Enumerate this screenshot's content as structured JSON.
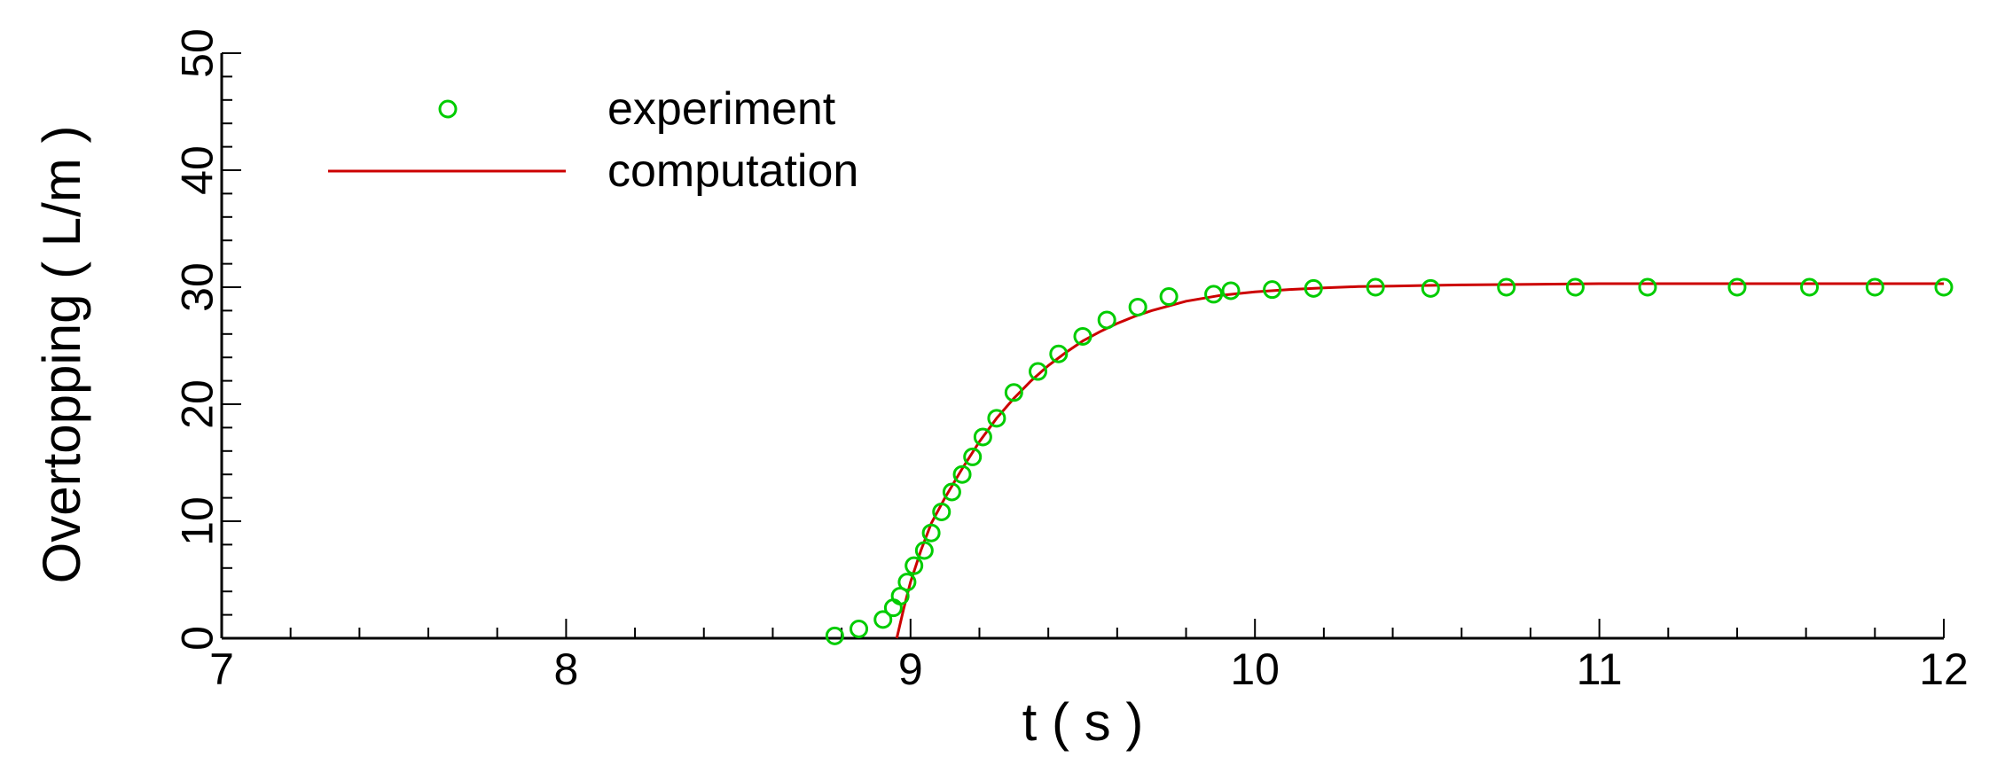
{
  "chart_data": {
    "type": "scatter",
    "title": "",
    "xlabel": "t ( s )",
    "ylabel": "Overtopping ( L/m )",
    "xlim": [
      7,
      12
    ],
    "ylim": [
      0,
      50
    ],
    "x_ticks": [
      "7",
      "8",
      "9",
      "10",
      "11",
      "12"
    ],
    "y_ticks": [
      "0",
      "10",
      "20",
      "30",
      "40",
      "50"
    ],
    "grid": false,
    "legend_position": "top-left",
    "series": [
      {
        "name": "experiment",
        "type": "scatter",
        "marker": "open-circle",
        "color": "#00cc00",
        "x": [
          8.78,
          8.85,
          8.92,
          8.95,
          8.97,
          8.99,
          9.01,
          9.04,
          9.06,
          9.09,
          9.12,
          9.15,
          9.18,
          9.21,
          9.25,
          9.3,
          9.37,
          9.43,
          9.5,
          9.57,
          9.66,
          9.75,
          9.88,
          9.93,
          10.05,
          10.17,
          10.35,
          10.51,
          10.73,
          10.93,
          11.14,
          11.4,
          11.61,
          11.8,
          12.0
        ],
        "y": [
          0.2,
          0.8,
          1.6,
          2.6,
          3.6,
          4.8,
          6.2,
          7.5,
          9.0,
          10.8,
          12.5,
          14.0,
          15.5,
          17.2,
          18.8,
          21.0,
          22.8,
          24.3,
          25.8,
          27.2,
          28.3,
          29.2,
          29.4,
          29.7,
          29.8,
          29.9,
          30.0,
          29.9,
          30.0,
          30.0,
          30.0,
          30.0,
          30.0,
          30.0,
          30.0
        ]
      },
      {
        "name": "computation",
        "type": "line",
        "color": "#cc0000",
        "x": [
          8.96,
          8.98,
          9.0,
          9.03,
          9.06,
          9.1,
          9.15,
          9.2,
          9.25,
          9.3,
          9.35,
          9.4,
          9.45,
          9.5,
          9.55,
          9.6,
          9.65,
          9.7,
          9.8,
          9.9,
          10.0,
          10.1,
          10.2,
          10.3,
          10.4,
          10.5,
          10.6,
          10.8,
          11.0,
          11.5,
          12.0
        ],
        "y": [
          0.0,
          2.5,
          4.8,
          7.5,
          9.8,
          12.0,
          14.5,
          16.8,
          18.8,
          20.5,
          22.0,
          23.3,
          24.4,
          25.4,
          26.2,
          26.9,
          27.5,
          28.0,
          28.8,
          29.3,
          29.6,
          29.8,
          29.95,
          30.05,
          30.1,
          30.15,
          30.2,
          30.25,
          30.3,
          30.3,
          30.3
        ]
      }
    ]
  }
}
